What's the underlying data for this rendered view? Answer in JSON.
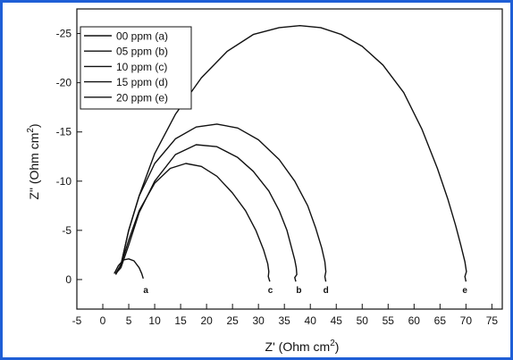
{
  "chart_data": {
    "type": "line",
    "title": "",
    "xlabel": "Z' (Ohm cm",
    "xlabel_sup": "2",
    "xlabel_close": ")",
    "ylabel": "Z\" (Ohm cm",
    "ylabel_sup": "2",
    "ylabel_close": ")",
    "xlim": [
      -5,
      77
    ],
    "ylim": [
      3,
      -27.5
    ],
    "x_ticks": [
      "-5",
      "0",
      "5",
      "10",
      "15",
      "20",
      "25",
      "30",
      "35",
      "40",
      "45",
      "50",
      "55",
      "60",
      "65",
      "70",
      "75"
    ],
    "x_tick_values": [
      -5,
      0,
      5,
      10,
      15,
      20,
      25,
      30,
      35,
      40,
      45,
      50,
      55,
      60,
      65,
      70,
      75
    ],
    "y_ticks": [
      "0",
      "-5",
      "-10",
      "-15",
      "-20",
      "-25"
    ],
    "y_tick_values": [
      0,
      -5,
      -10,
      -15,
      -20,
      -25
    ],
    "grid": false,
    "legend": "top-left",
    "series": [
      {
        "name": "00 ppm (a)",
        "label": "a",
        "label_x": 8.3,
        "x": [
          2.2,
          3.0,
          4.0,
          5.0,
          6.0,
          7.0,
          7.5,
          7.8
        ],
        "y": [
          -0.6,
          -1.4,
          -2.0,
          -2.1,
          -1.9,
          -1.2,
          -0.6,
          -0.1
        ]
      },
      {
        "name": "05 ppm (b)",
        "label": "b",
        "label_x": 37.8,
        "x": [
          2.5,
          3.5,
          5.0,
          7.0,
          10.0,
          14.0,
          18.0,
          22.0,
          26.0,
          29.0,
          32.0,
          34.0,
          35.5,
          36.5,
          37.0,
          37.3,
          37.4,
          37.0,
          37.2
        ],
        "y": [
          -0.6,
          -1.2,
          -3.5,
          -6.8,
          -10.0,
          -12.7,
          -13.7,
          -13.5,
          -12.4,
          -11.0,
          -9.0,
          -7.0,
          -5.0,
          -3.0,
          -2.0,
          -1.2,
          -0.5,
          -0.2,
          0.2
        ]
      },
      {
        "name": "10 ppm (c)",
        "label": "c",
        "label_x": 32.3,
        "x": [
          2.5,
          3.5,
          5.0,
          7.0,
          10.0,
          13.0,
          16.0,
          19.0,
          22.0,
          25.0,
          27.5,
          29.5,
          31.0,
          31.8,
          32.0,
          31.9,
          32.2
        ],
        "y": [
          -0.6,
          -1.5,
          -4.0,
          -7.0,
          -9.8,
          -11.3,
          -11.8,
          -11.5,
          -10.5,
          -8.8,
          -7.0,
          -5.0,
          -3.0,
          -1.6,
          -0.8,
          -0.3,
          0.2
        ]
      },
      {
        "name": "15 ppm (d)",
        "label": "d",
        "label_x": 43.0,
        "x": [
          2.5,
          3.5,
          5.0,
          7.0,
          10.0,
          14.0,
          18.0,
          22.0,
          26.0,
          30.0,
          34.0,
          37.0,
          39.5,
          41.0,
          42.2,
          42.8,
          43.0,
          42.8,
          43.0
        ],
        "y": [
          -0.6,
          -1.5,
          -5.0,
          -8.5,
          -11.8,
          -14.3,
          -15.5,
          -15.8,
          -15.4,
          -14.2,
          -12.2,
          -10.0,
          -7.5,
          -5.3,
          -3.2,
          -1.8,
          -0.8,
          -0.3,
          0.2
        ]
      },
      {
        "name": "20 ppm (e)",
        "label": "e",
        "label_x": 69.8,
        "x": [
          2.5,
          3.5,
          5.0,
          7.0,
          10.0,
          14.0,
          19.0,
          24.0,
          29.0,
          34.0,
          38.0,
          42.0,
          46.0,
          50.0,
          54.0,
          58.0,
          61.5,
          64.5,
          66.5,
          68.0,
          69.0,
          69.8,
          70.1,
          69.8,
          70.0
        ],
        "y": [
          -0.5,
          -1.5,
          -5.0,
          -8.5,
          -12.8,
          -16.8,
          -20.5,
          -23.2,
          -24.9,
          -25.6,
          -25.8,
          -25.6,
          -24.9,
          -23.7,
          -21.8,
          -19.0,
          -15.3,
          -11.3,
          -8.2,
          -5.5,
          -3.5,
          -1.8,
          -0.8,
          -0.3,
          0.2
        ]
      }
    ]
  }
}
